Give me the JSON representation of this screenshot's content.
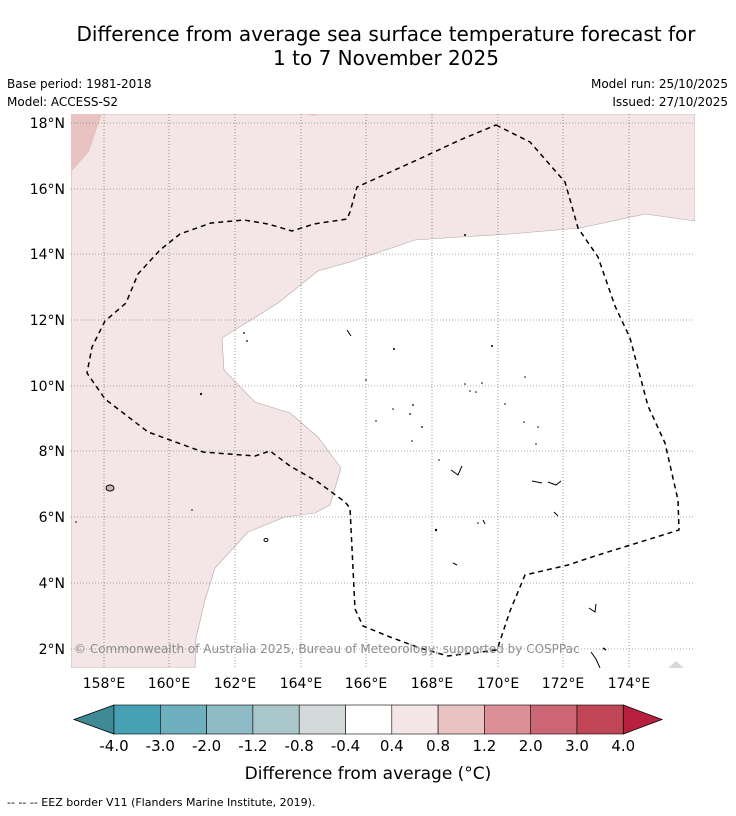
{
  "title": {
    "line1": "Difference from average sea surface temperature forecast for",
    "line2": "1 to 7 November 2025"
  },
  "meta_left": {
    "base_period": "Base period: 1981-2018",
    "model": "Model: ACCESS-S2"
  },
  "meta_right": {
    "model_run": "Model run: 25/10/2025",
    "issued": "Issued: 27/10/2025"
  },
  "map": {
    "lat_labels": [
      "18°N",
      "16°N",
      "14°N",
      "12°N",
      "10°N",
      "8°N",
      "6°N",
      "4°N",
      "2°N"
    ],
    "lon_labels": [
      "158°E",
      "160°E",
      "162°E",
      "164°E",
      "166°E",
      "168°E",
      "170°E",
      "172°E",
      "174°E"
    ],
    "copyright": "© Commonwealth of Australia 2025, Bureau of Meteorology; supported by COSPPac"
  },
  "colorbar": {
    "ticks": [
      "-4.0",
      "-3.0",
      "-2.0",
      "-1.2",
      "-0.8",
      "-0.4",
      "0.4",
      "0.8",
      "1.2",
      "2.0",
      "3.0",
      "4.0"
    ],
    "colors": {
      "under": "#3f8a95",
      "bins": [
        "#46a2b3",
        "#6fb0c0",
        "#8fbbc7",
        "#aac8cc",
        "#d3d8d9",
        "#ffffff",
        "#f4e6e6",
        "#e8c3c2",
        "#db8f97",
        "#cc6675",
        "#c04555"
      ],
      "over": "#b8203f"
    },
    "label": "Difference from average (°C)"
  },
  "legend": {
    "eez": "--  --  -- EEZ border V11 (Flanders Marine Institute, 2019)."
  }
}
